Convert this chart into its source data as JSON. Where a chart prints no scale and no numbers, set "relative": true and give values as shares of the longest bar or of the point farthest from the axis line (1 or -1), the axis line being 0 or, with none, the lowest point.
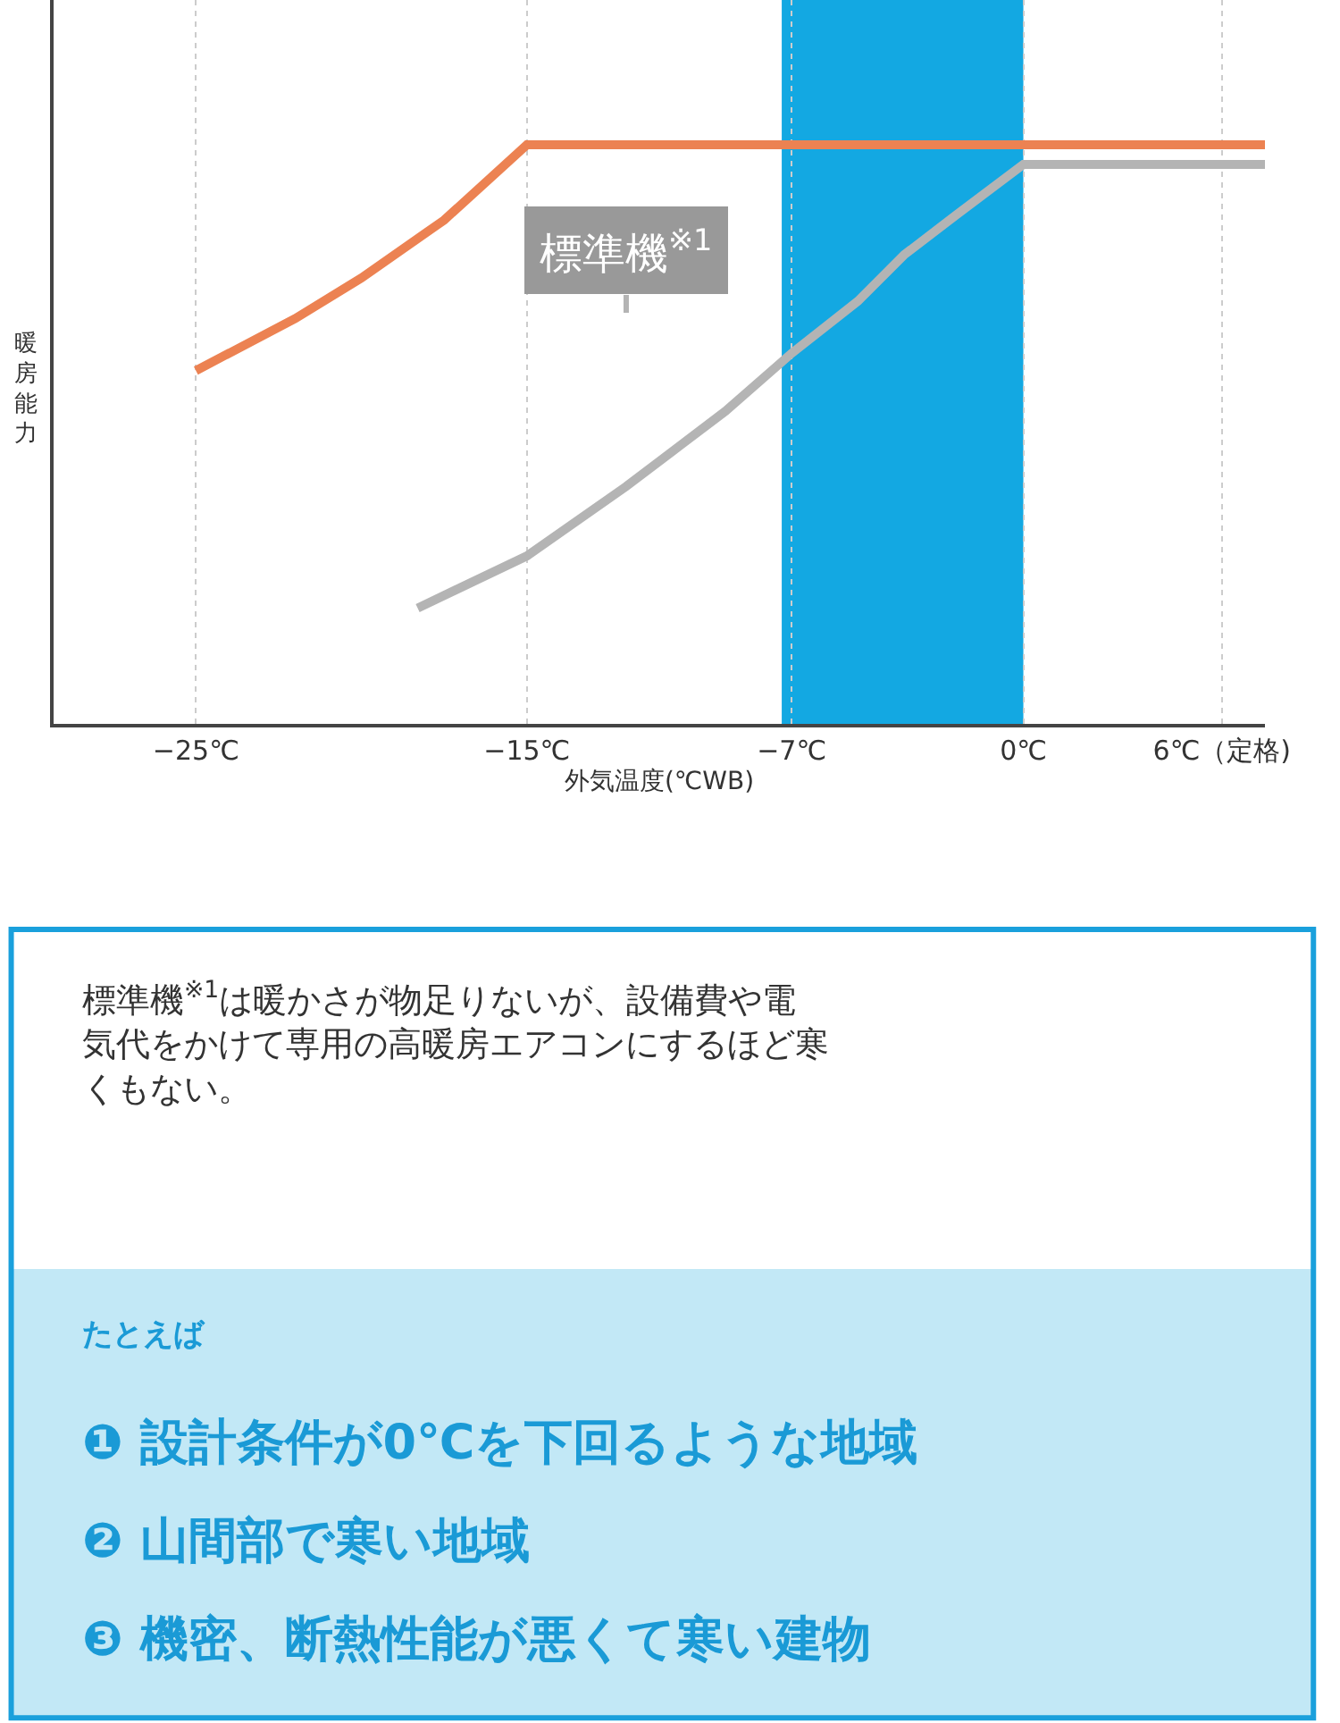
{
  "chart_data": {
    "type": "line",
    "relative": true,
    "ylabel": "暖房能力",
    "xlabel": "外気温度(℃WB)",
    "xlim": [
      -29.3,
      7.3
    ],
    "xticks": [
      {
        "value": -25,
        "label": "−25℃"
      },
      {
        "value": -15,
        "label": "−15℃"
      },
      {
        "value": -7,
        "label": "−7℃"
      },
      {
        "value": 0,
        "label": "0℃"
      },
      {
        "value": 6,
        "label": "6℃（定格)"
      }
    ],
    "grid": "x",
    "legend": false,
    "marker": "none",
    "line_style": "solid",
    "series": [
      {
        "color": "#ec8252",
        "x": [
          -25,
          -22,
          -20,
          -17.5,
          -15,
          0,
          7.3
        ],
        "values": [
          0.61,
          0.7,
          0.77,
          0.87,
          1,
          1,
          1
        ]
      },
      {
        "name": "標準機$^{※1}$",
        "color": "#b4b4b4",
        "x": [
          -18.3,
          -15,
          -12,
          -9,
          -7,
          -5,
          -3.6,
          -2,
          0,
          7.3
        ],
        "values": [
          0.2,
          0.29,
          0.41,
          0.54,
          0.64,
          0.73,
          0.81,
          0.88,
          0.966,
          0.966
        ]
      }
    ],
    "bands": [
      {
        "axis": "x",
        "from": -7.3,
        "to": 0,
        "color": "#06a3e0"
      }
    ],
    "annotations": [
      "標準機$^{※1}$は暖かさが物足りないが、設備費や電気代をかけて専用の高暖房エアコンにするほど寒くもない。",
      "たとえば",
      "❶ 設計条件が0℃を下回るような地域",
      "❷ 山間部で寒い地域",
      "❸ 機密、断熱性能が悪くて寒い建物"
    ]
  }
}
